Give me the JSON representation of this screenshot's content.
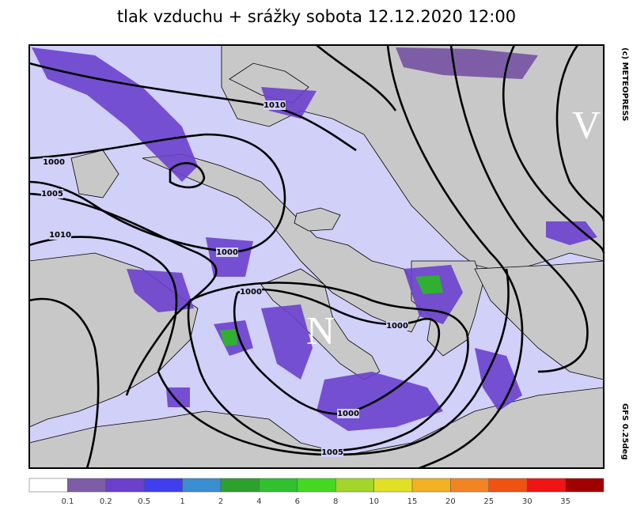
{
  "title": "tlak vzduchu + srážky  sobota 12.12.2020 12:00",
  "credit": "(c) METEOPRESS",
  "model": "GFS 0.25deg",
  "centers": [
    "V",
    "N"
  ],
  "isobar_labels": [
    "1010",
    "1000",
    "1005",
    "1010",
    "1000",
    "1000",
    "1000",
    "1000",
    "1005"
  ],
  "legend": {
    "colors": [
      "#ffffff",
      "#7d5ea6",
      "#6a40cc",
      "#3f3ff0",
      "#3a8fd0",
      "#2ea02e",
      "#30c030",
      "#44d822",
      "#a2d62a",
      "#e2e024",
      "#f2b224",
      "#f28424",
      "#f05214",
      "#f01414",
      "#a00000"
    ],
    "labels": [
      "0.1",
      "0.2",
      "0.5",
      "1",
      "2",
      "4",
      "6",
      "8",
      "10",
      "15",
      "20",
      "25",
      "30",
      "35"
    ]
  }
}
